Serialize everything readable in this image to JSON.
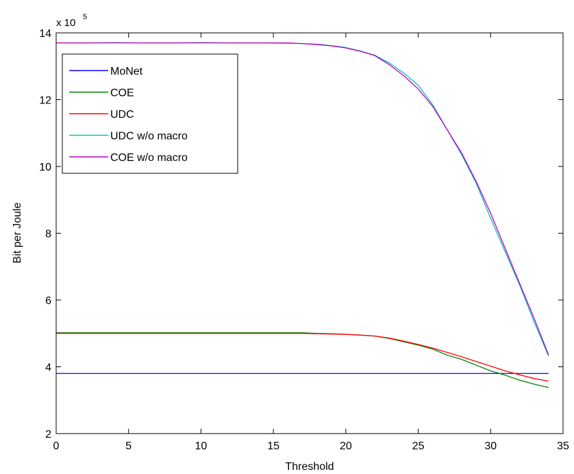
{
  "chart_data": {
    "type": "line",
    "title": "",
    "xlabel": "Threshold",
    "ylabel": "Bit per Joule",
    "y_multiplier": {
      "base": "x 10",
      "exponent": "5"
    },
    "xlim": [
      0,
      35
    ],
    "ylim": [
      2,
      14
    ],
    "xticks": [
      0,
      5,
      10,
      15,
      20,
      25,
      30,
      35
    ],
    "yticks": [
      2,
      4,
      6,
      8,
      10,
      12,
      14
    ],
    "y_scale_factor": 100000,
    "grid": false,
    "legend_position": "top-left",
    "x": [
      0,
      2,
      4,
      6,
      8,
      10,
      12,
      14,
      16,
      17,
      18,
      19,
      20,
      21,
      22,
      23,
      24,
      25,
      26,
      27,
      28,
      29,
      30,
      31,
      32,
      33,
      34
    ],
    "series": [
      {
        "name": "MoNet",
        "color": "#0000ff",
        "values": [
          3.8,
          3.8,
          3.8,
          3.8,
          3.8,
          3.8,
          3.8,
          3.8,
          3.8,
          3.8,
          3.8,
          3.8,
          3.8,
          3.8,
          3.8,
          3.8,
          3.8,
          3.8,
          3.8,
          3.8,
          3.8,
          3.8,
          3.8,
          3.8,
          3.8,
          3.8,
          3.8
        ]
      },
      {
        "name": "COE",
        "color": "#008000",
        "values": [
          5.02,
          5.02,
          5.02,
          5.02,
          5.02,
          5.02,
          5.02,
          5.02,
          5.02,
          5.02,
          5.0,
          4.99,
          4.97,
          4.95,
          4.92,
          4.85,
          4.75,
          4.65,
          4.53,
          4.35,
          4.22,
          4.05,
          3.88,
          3.75,
          3.6,
          3.48,
          3.38
        ]
      },
      {
        "name": "UDC",
        "color": "#ff0000",
        "values": [
          5.0,
          5.0,
          5.0,
          5.0,
          5.0,
          5.0,
          5.0,
          5.0,
          5.0,
          5.0,
          4.99,
          4.98,
          4.97,
          4.95,
          4.92,
          4.86,
          4.77,
          4.67,
          4.56,
          4.43,
          4.3,
          4.16,
          4.02,
          3.88,
          3.76,
          3.65,
          3.57
        ]
      },
      {
        "name": "UDC w/o macro",
        "color": "#00bfbf",
        "values": [
          13.7,
          13.7,
          13.71,
          13.7,
          13.7,
          13.71,
          13.7,
          13.7,
          13.69,
          13.68,
          13.66,
          13.62,
          13.56,
          13.46,
          13.33,
          13.1,
          12.8,
          12.43,
          11.85,
          11.1,
          10.35,
          9.5,
          8.45,
          7.45,
          6.45,
          5.35,
          4.32
        ]
      },
      {
        "name": "COE w/o macro",
        "color": "#bf00bf",
        "values": [
          13.7,
          13.7,
          13.7,
          13.7,
          13.7,
          13.7,
          13.7,
          13.7,
          13.7,
          13.68,
          13.65,
          13.61,
          13.55,
          13.45,
          13.32,
          13.05,
          12.72,
          12.32,
          11.8,
          11.1,
          10.4,
          9.55,
          8.6,
          7.55,
          6.5,
          5.45,
          4.36
        ]
      }
    ]
  }
}
